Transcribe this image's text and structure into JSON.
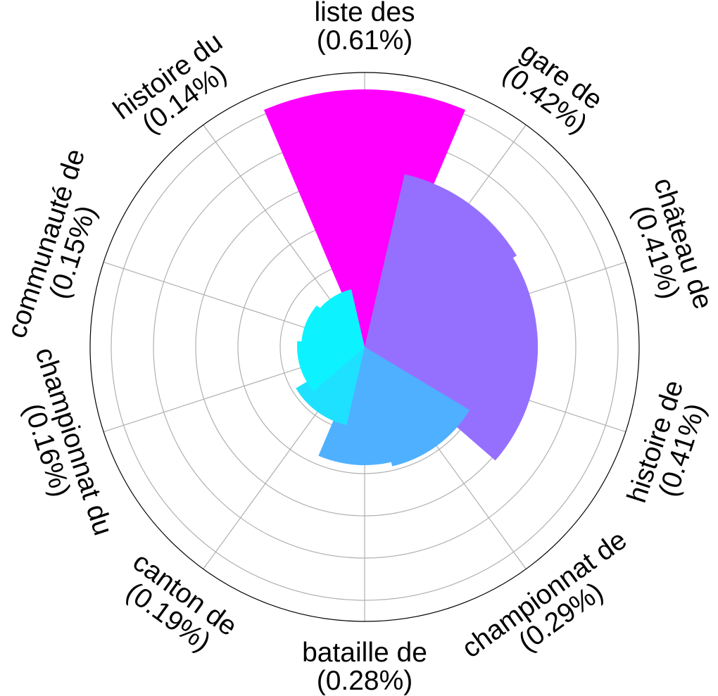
{
  "chart_data": {
    "type": "bar",
    "subtype": "polar",
    "title": "",
    "categories": [
      "liste des",
      "gare de",
      "château de",
      "histoire de",
      "championnat de",
      "bataille de",
      "canton de",
      "championnat du",
      "communauté de",
      "histoire du"
    ],
    "labels": [
      "(0.61%)",
      "(0.42%)",
      "(0.41%)",
      "(0.41%)",
      "(0.29%)",
      "(0.28%)",
      "(0.19%)",
      "(0.16%)",
      "(0.15%)",
      "(0.14%)"
    ],
    "values": [
      0.61,
      0.42,
      0.41,
      0.41,
      0.29,
      0.28,
      0.19,
      0.16,
      0.15,
      0.14
    ],
    "colors": [
      "#ff00ff",
      "#9570ff",
      "#9570ff",
      "#9570ff",
      "#4fb0ff",
      "#4fb0ff",
      "#1ee1ff",
      "#0cf3ff",
      "#0cf3ff",
      "#0cf3ff"
    ],
    "rlim": [
      0,
      0.65
    ],
    "grid": true,
    "legend": "none"
  }
}
